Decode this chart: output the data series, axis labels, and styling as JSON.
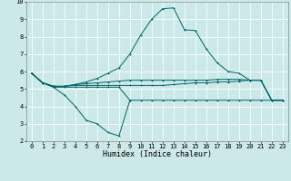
{
  "xlabel": "Humidex (Indice chaleur)",
  "bg_color": "#cce8e8",
  "grid_color": "#ffffff",
  "line_color": "#006666",
  "x_values": [
    0,
    1,
    2,
    3,
    4,
    5,
    6,
    7,
    8,
    9,
    10,
    11,
    12,
    13,
    14,
    15,
    16,
    17,
    18,
    19,
    20,
    21,
    22,
    23
  ],
  "line1": [
    5.9,
    5.35,
    5.1,
    4.65,
    4.0,
    3.2,
    3.0,
    2.5,
    2.3,
    4.35,
    null,
    null,
    null,
    null,
    null,
    null,
    null,
    null,
    null,
    null,
    null,
    null,
    null,
    null
  ],
  "line2": [
    5.9,
    5.35,
    5.1,
    5.1,
    5.1,
    5.1,
    5.1,
    5.1,
    5.1,
    4.35,
    4.35,
    4.35,
    4.35,
    4.35,
    4.35,
    4.35,
    4.35,
    4.35,
    4.35,
    4.35,
    4.35,
    4.35,
    4.35,
    4.35
  ],
  "line3": [
    5.9,
    5.35,
    5.15,
    5.15,
    5.2,
    5.2,
    5.2,
    5.2,
    5.2,
    5.2,
    5.2,
    5.2,
    5.2,
    5.25,
    5.3,
    5.35,
    5.35,
    5.4,
    5.4,
    5.45,
    5.5,
    5.5,
    4.35,
    4.35
  ],
  "line4": [
    5.9,
    5.35,
    5.15,
    5.15,
    5.25,
    5.3,
    5.35,
    5.4,
    5.45,
    5.5,
    5.5,
    5.5,
    5.5,
    5.5,
    5.5,
    5.5,
    5.5,
    5.55,
    5.55,
    5.55,
    5.5,
    5.5,
    4.35,
    4.35
  ],
  "line5": [
    5.9,
    5.35,
    5.15,
    5.15,
    5.25,
    5.4,
    5.6,
    5.9,
    6.2,
    7.0,
    8.1,
    9.0,
    9.6,
    9.65,
    8.4,
    8.35,
    7.3,
    6.5,
    6.0,
    5.9,
    5.5,
    5.5,
    4.35,
    4.35
  ],
  "xlim": [
    -0.5,
    23.5
  ],
  "ylim": [
    2,
    10
  ],
  "yticks": [
    2,
    3,
    4,
    5,
    6,
    7,
    8,
    9,
    10
  ],
  "xticks": [
    0,
    1,
    2,
    3,
    4,
    5,
    6,
    7,
    8,
    9,
    10,
    11,
    12,
    13,
    14,
    15,
    16,
    17,
    18,
    19,
    20,
    21,
    22,
    23
  ]
}
